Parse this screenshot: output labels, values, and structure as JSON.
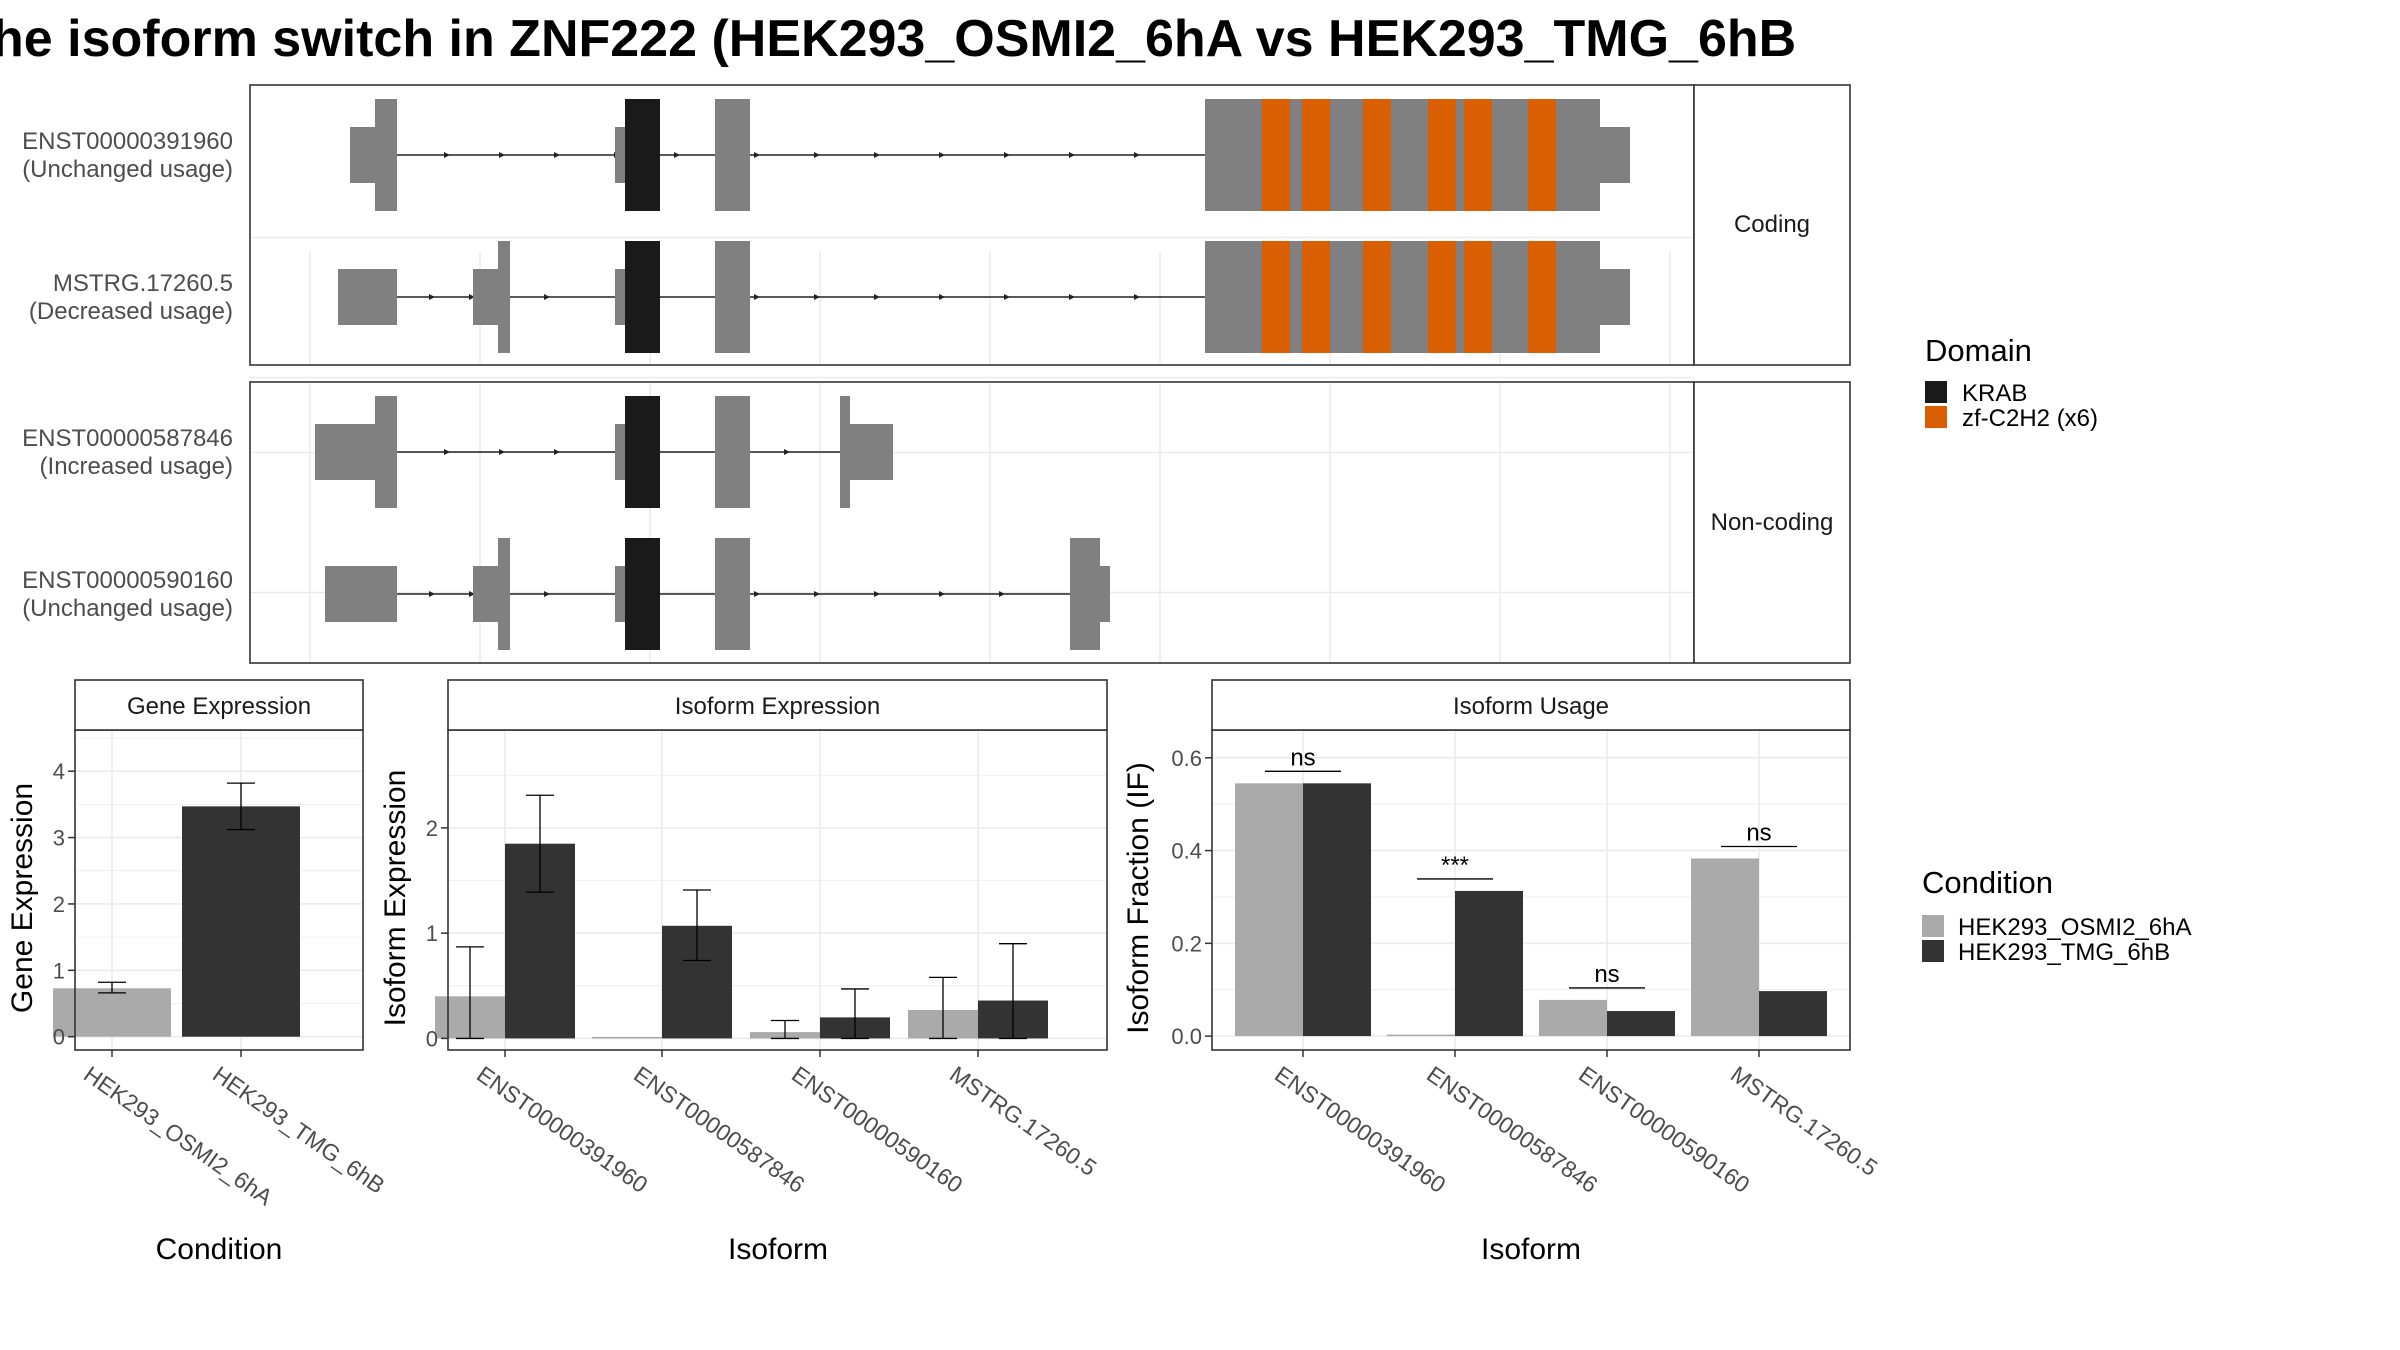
{
  "title": "he isoform switch in ZNF222 (HEK293_OSMI2_6hA vs HEK293_TMG_6hB",
  "colors": {
    "exon": "#808080",
    "krab": "#1a1a1a",
    "zf": "#d95f02",
    "cond_a": "#aaaaaa",
    "cond_b": "#333333",
    "grid": "#ebebeb",
    "frame": "#333333",
    "strip_fill": "#ffffff"
  },
  "structure": {
    "facets": [
      {
        "label": "Coding",
        "transcripts": [
          {
            "id": "ENST00000391960",
            "status": "(Unchanged usage)"
          },
          {
            "id": "MSTRG.17260.5",
            "status": "(Decreased usage)"
          }
        ]
      },
      {
        "label": "Non-coding",
        "transcripts": [
          {
            "id": "ENST00000587846",
            "status": "(Increased usage)"
          },
          {
            "id": "ENST00000590160",
            "status": "(Unchanged usage)"
          }
        ]
      }
    ]
  },
  "legends": {
    "domain": {
      "title": "Domain",
      "items": [
        {
          "label": "KRAB",
          "color": "#1a1a1a"
        },
        {
          "label": "zf-C2H2 (x6)",
          "color": "#d95f02"
        }
      ]
    },
    "condition": {
      "title": "Condition",
      "items": [
        {
          "label": "HEK293_OSMI2_6hA",
          "color": "#aaaaaa"
        },
        {
          "label": "HEK293_TMG_6hB",
          "color": "#333333"
        }
      ]
    }
  },
  "chart_data": [
    {
      "type": "bar",
      "strip": "Gene Expression",
      "xlabel": "Condition",
      "ylabel": "Gene Expression",
      "categories": [
        "HEK293_OSMI2_6hA",
        "HEK293_TMG_6hB"
      ],
      "values": [
        0.73,
        3.47
      ],
      "error_low": [
        0.66,
        3.12
      ],
      "error_high": [
        0.82,
        3.82
      ],
      "ylim": [
        -0.2,
        4.62
      ],
      "yticks": [
        0,
        1,
        2,
        3,
        4
      ]
    },
    {
      "type": "bar",
      "strip": "Isoform Expression",
      "xlabel": "Isoform",
      "ylabel": "Isoform Expression",
      "categories": [
        "ENST00000391960",
        "ENST00000587846",
        "ENST00000590160",
        "MSTRG.17260.5"
      ],
      "series": [
        {
          "name": "HEK293_OSMI2_6hA",
          "values": [
            0.4,
            0.0,
            0.06,
            0.27
          ],
          "error_low": [
            0.0,
            0.0,
            0.0,
            0.0
          ],
          "error_high": [
            0.87,
            0.0,
            0.17,
            0.58
          ]
        },
        {
          "name": "HEK293_TMG_6hB",
          "values": [
            1.85,
            1.07,
            0.2,
            0.36
          ],
          "error_low": [
            1.39,
            0.74,
            0.0,
            0.0
          ],
          "error_high": [
            2.31,
            1.41,
            0.47,
            0.9
          ]
        }
      ],
      "ylim": [
        -0.11,
        2.93
      ],
      "yticks": [
        0,
        1,
        2
      ]
    },
    {
      "type": "bar",
      "strip": "Isoform Usage",
      "xlabel": "Isoform",
      "ylabel": "Isoform Fraction (IF)",
      "categories": [
        "ENST00000391960",
        "ENST00000587846",
        "ENST00000590160",
        "MSTRG.17260.5"
      ],
      "series": [
        {
          "name": "HEK293_OSMI2_6hA",
          "values": [
            0.545,
            0.0,
            0.078,
            0.383
          ]
        },
        {
          "name": "HEK293_TMG_6hB",
          "values": [
            0.545,
            0.313,
            0.054,
            0.097
          ]
        }
      ],
      "significance": [
        "ns",
        "***",
        "ns",
        "ns"
      ],
      "ylim": [
        -0.03,
        0.66
      ],
      "yticks": [
        0.0,
        0.2,
        0.4,
        0.6
      ],
      "ytick_labels": [
        "0.0",
        "0.2",
        "0.4",
        "0.6"
      ]
    }
  ]
}
